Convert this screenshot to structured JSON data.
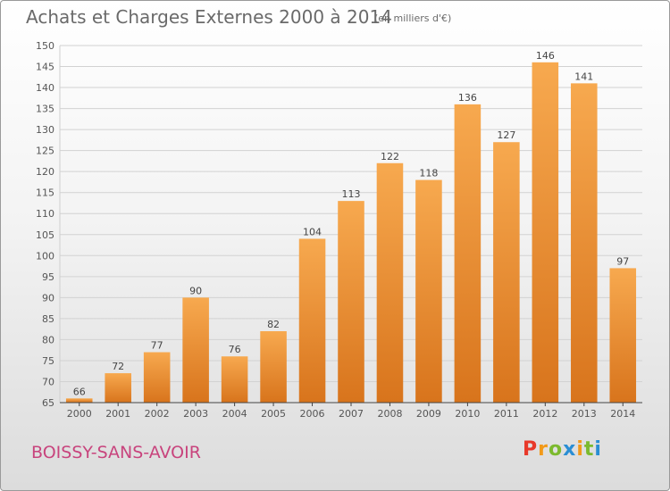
{
  "header": {
    "title": "Achats et Charges Externes 2000 à 2014",
    "subtitle": "(en milliers d'€)"
  },
  "footer": {
    "city": "BOISSY-SANS-AVOIR",
    "logo": "Proxiti"
  },
  "colors": {
    "bar_top": "#f7a94f",
    "bar_bottom": "#d8741c",
    "city_text": "#c8447d",
    "axis_text": "#555555"
  },
  "chart_data": {
    "type": "bar",
    "categories": [
      "2000",
      "2001",
      "2002",
      "2003",
      "2004",
      "2005",
      "2006",
      "2007",
      "2008",
      "2009",
      "2010",
      "2011",
      "2012",
      "2013",
      "2014"
    ],
    "values": [
      66,
      72,
      77,
      90,
      76,
      82,
      104,
      113,
      122,
      118,
      136,
      127,
      146,
      141,
      97
    ],
    "title": "Achats et Charges Externes 2000 à 2014",
    "ylim": [
      65,
      150
    ],
    "yticks": [
      65,
      70,
      75,
      80,
      85,
      90,
      95,
      100,
      105,
      110,
      115,
      120,
      125,
      130,
      135,
      140,
      145,
      150
    ],
    "grid": true,
    "data_labels": true
  }
}
